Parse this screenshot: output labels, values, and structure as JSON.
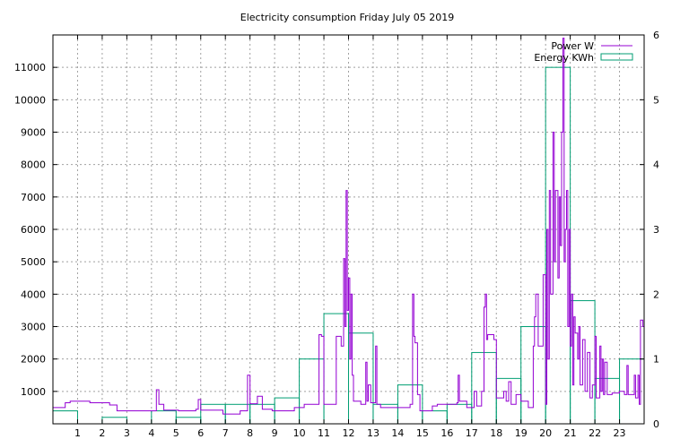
{
  "chart_data": {
    "type": "bar",
    "title": "Electricity consumption Friday July 05 2019",
    "xlim": [
      0,
      24
    ],
    "ylim": [
      0,
      12000
    ],
    "y2lim": [
      0,
      6
    ],
    "x_ticks": [
      1,
      2,
      3,
      4,
      5,
      6,
      7,
      8,
      9,
      10,
      11,
      12,
      13,
      14,
      15,
      16,
      17,
      18,
      19,
      20,
      21,
      22,
      23
    ],
    "y_ticks": [
      1000,
      2000,
      3000,
      4000,
      5000,
      6000,
      7000,
      8000,
      9000,
      10000,
      11000
    ],
    "y2_ticks": [
      0,
      1,
      2,
      3,
      4,
      5,
      6
    ],
    "grid": true,
    "legend_position": "top-right",
    "colors": {
      "power": "#9400d3",
      "energy": "#009e73"
    },
    "series": [
      {
        "name": "Energy KWh",
        "axis": "y2",
        "type": "step-bar",
        "hours": [
          0,
          1,
          2,
          3,
          4,
          5,
          6,
          7,
          8,
          9,
          10,
          11,
          12,
          13,
          14,
          15,
          16,
          17,
          18,
          19,
          20,
          21,
          22,
          23
        ],
        "values": [
          0.2,
          0.0,
          0.1,
          0.0,
          0.2,
          0.1,
          0.3,
          0.3,
          0.3,
          0.4,
          1.0,
          1.7,
          1.4,
          0.3,
          0.6,
          0.2,
          0.3,
          1.1,
          0.7,
          1.5,
          5.5,
          1.9,
          0.7,
          1.0
        ]
      },
      {
        "name": "Power W",
        "axis": "y",
        "type": "step-line",
        "points": [
          [
            0.0,
            500
          ],
          [
            0.5,
            650
          ],
          [
            0.7,
            700
          ],
          [
            1.5,
            650
          ],
          [
            2.3,
            580
          ],
          [
            2.6,
            400
          ],
          [
            4.1,
            400
          ],
          [
            4.2,
            1050
          ],
          [
            4.3,
            600
          ],
          [
            4.5,
            420
          ],
          [
            5.1,
            400
          ],
          [
            5.8,
            450
          ],
          [
            5.9,
            750
          ],
          [
            6.0,
            420
          ],
          [
            6.9,
            300
          ],
          [
            7.6,
            400
          ],
          [
            7.9,
            1500
          ],
          [
            8.0,
            620
          ],
          [
            8.3,
            850
          ],
          [
            8.5,
            450
          ],
          [
            8.9,
            400
          ],
          [
            9.8,
            500
          ],
          [
            10.2,
            600
          ],
          [
            10.8,
            2750
          ],
          [
            10.9,
            2700
          ],
          [
            11.0,
            600
          ],
          [
            11.5,
            2700
          ],
          [
            11.7,
            2400
          ],
          [
            11.8,
            5100
          ],
          [
            11.85,
            3000
          ],
          [
            11.9,
            7200
          ],
          [
            11.95,
            3500
          ],
          [
            12.0,
            4500
          ],
          [
            12.05,
            2000
          ],
          [
            12.1,
            4000
          ],
          [
            12.15,
            1500
          ],
          [
            12.2,
            700
          ],
          [
            12.5,
            600
          ],
          [
            12.7,
            1900
          ],
          [
            12.75,
            700
          ],
          [
            12.8,
            1200
          ],
          [
            12.9,
            650
          ],
          [
            13.1,
            2400
          ],
          [
            13.15,
            600
          ],
          [
            13.3,
            500
          ],
          [
            14.5,
            600
          ],
          [
            14.6,
            4000
          ],
          [
            14.65,
            2700
          ],
          [
            14.7,
            2500
          ],
          [
            14.8,
            900
          ],
          [
            14.9,
            400
          ],
          [
            15.4,
            550
          ],
          [
            15.6,
            600
          ],
          [
            16.4,
            650
          ],
          [
            16.45,
            1500
          ],
          [
            16.5,
            700
          ],
          [
            16.8,
            500
          ],
          [
            17.1,
            1000
          ],
          [
            17.2,
            550
          ],
          [
            17.4,
            1000
          ],
          [
            17.5,
            3600
          ],
          [
            17.55,
            4000
          ],
          [
            17.6,
            2600
          ],
          [
            17.65,
            2750
          ],
          [
            17.9,
            2600
          ],
          [
            18.0,
            800
          ],
          [
            18.3,
            1000
          ],
          [
            18.4,
            700
          ],
          [
            18.5,
            1300
          ],
          [
            18.6,
            600
          ],
          [
            18.8,
            900
          ],
          [
            19.0,
            700
          ],
          [
            19.3,
            500
          ],
          [
            19.5,
            2400
          ],
          [
            19.55,
            3300
          ],
          [
            19.6,
            4000
          ],
          [
            19.7,
            2400
          ],
          [
            19.9,
            4600
          ],
          [
            20.0,
            600
          ],
          [
            20.05,
            6000
          ],
          [
            20.1,
            2000
          ],
          [
            20.15,
            7200
          ],
          [
            20.2,
            4000
          ],
          [
            20.3,
            9000
          ],
          [
            20.35,
            5000
          ],
          [
            20.4,
            7200
          ],
          [
            20.5,
            4500
          ],
          [
            20.55,
            7000
          ],
          [
            20.6,
            5500
          ],
          [
            20.65,
            9000
          ],
          [
            20.7,
            11900
          ],
          [
            20.75,
            5000
          ],
          [
            20.8,
            6000
          ],
          [
            20.85,
            7200
          ],
          [
            20.9,
            3000
          ],
          [
            20.95,
            6000
          ],
          [
            21.0,
            2400
          ],
          [
            21.05,
            4000
          ],
          [
            21.1,
            1200
          ],
          [
            21.15,
            3300
          ],
          [
            21.2,
            2800
          ],
          [
            21.3,
            2000
          ],
          [
            21.35,
            3000
          ],
          [
            21.4,
            1200
          ],
          [
            21.5,
            2600
          ],
          [
            21.6,
            1000
          ],
          [
            21.7,
            2200
          ],
          [
            21.8,
            800
          ],
          [
            21.9,
            1200
          ],
          [
            22.0,
            2700
          ],
          [
            22.05,
            800
          ],
          [
            22.2,
            2400
          ],
          [
            22.25,
            1000
          ],
          [
            22.3,
            2000
          ],
          [
            22.35,
            900
          ],
          [
            22.4,
            1900
          ],
          [
            22.5,
            900
          ],
          [
            22.7,
            950
          ],
          [
            23.0,
            1000
          ],
          [
            23.2,
            900
          ],
          [
            23.3,
            1800
          ],
          [
            23.35,
            900
          ],
          [
            23.6,
            1500
          ],
          [
            23.65,
            800
          ],
          [
            23.75,
            1500
          ],
          [
            23.8,
            600
          ],
          [
            23.85,
            3200
          ],
          [
            23.95,
            3000
          ],
          [
            24.0,
            3000
          ]
        ]
      }
    ]
  }
}
